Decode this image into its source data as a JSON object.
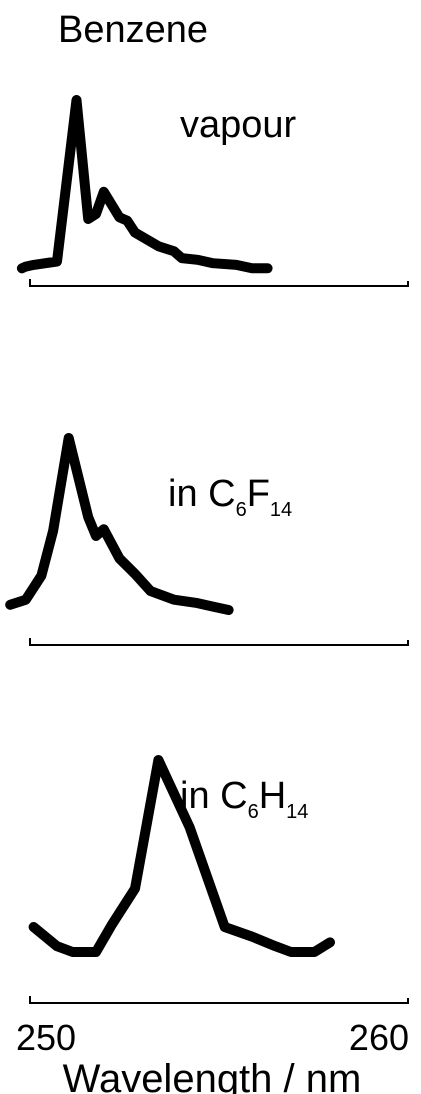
{
  "chart_data": {
    "type": "line",
    "title": "Benzene",
    "xlabel": "Wavelength / nm",
    "xlim": [
      250,
      260
    ],
    "x_ticks": [
      "250",
      "260"
    ],
    "series": [
      {
        "name": "vapour",
        "x": [
          250.1,
          250.2,
          250.4,
          251.0,
          251.5,
          251.8,
          252.0,
          252.2,
          252.6,
          252.8,
          253.0,
          253.6,
          254.0,
          254.2,
          254.6,
          255.0,
          255.6,
          256.0,
          256.4
        ],
        "y": [
          0.01,
          0.02,
          0.03,
          0.05,
          1.0,
          0.3,
          0.33,
          0.46,
          0.31,
          0.29,
          0.22,
          0.14,
          0.11,
          0.07,
          0.06,
          0.04,
          0.03,
          0.01,
          0.01
        ]
      },
      {
        "name": "in C6F14",
        "x": [
          249.8,
          250.2,
          250.6,
          250.9,
          251.3,
          251.8,
          252.0,
          252.2,
          252.6,
          253.0,
          253.4,
          254.0,
          254.6,
          255.0,
          255.4
        ],
        "y": [
          0.03,
          0.06,
          0.2,
          0.46,
          1.0,
          0.54,
          0.43,
          0.47,
          0.3,
          0.21,
          0.11,
          0.06,
          0.04,
          0.02,
          0.0
        ]
      },
      {
        "name": "in C6H14",
        "x": [
          250.4,
          251.0,
          251.4,
          252.0,
          252.4,
          253.0,
          253.6,
          254.4,
          255.3,
          256.0,
          256.6,
          257.0,
          257.6,
          258.0
        ],
        "y": [
          0.13,
          0.03,
          0.0,
          0.0,
          0.14,
          0.33,
          1.0,
          0.65,
          0.13,
          0.08,
          0.03,
          0.0,
          0.0,
          0.05
        ]
      }
    ],
    "series_labels": [
      {
        "prefix": "vapour"
      },
      {
        "prefix": "in C",
        "sub1": "6",
        "mid": "F",
        "sub2": "14"
      },
      {
        "prefix": "in C",
        "sub1": "6",
        "mid": "H",
        "sub2": "14"
      }
    ],
    "grid": false,
    "legend": "none"
  }
}
